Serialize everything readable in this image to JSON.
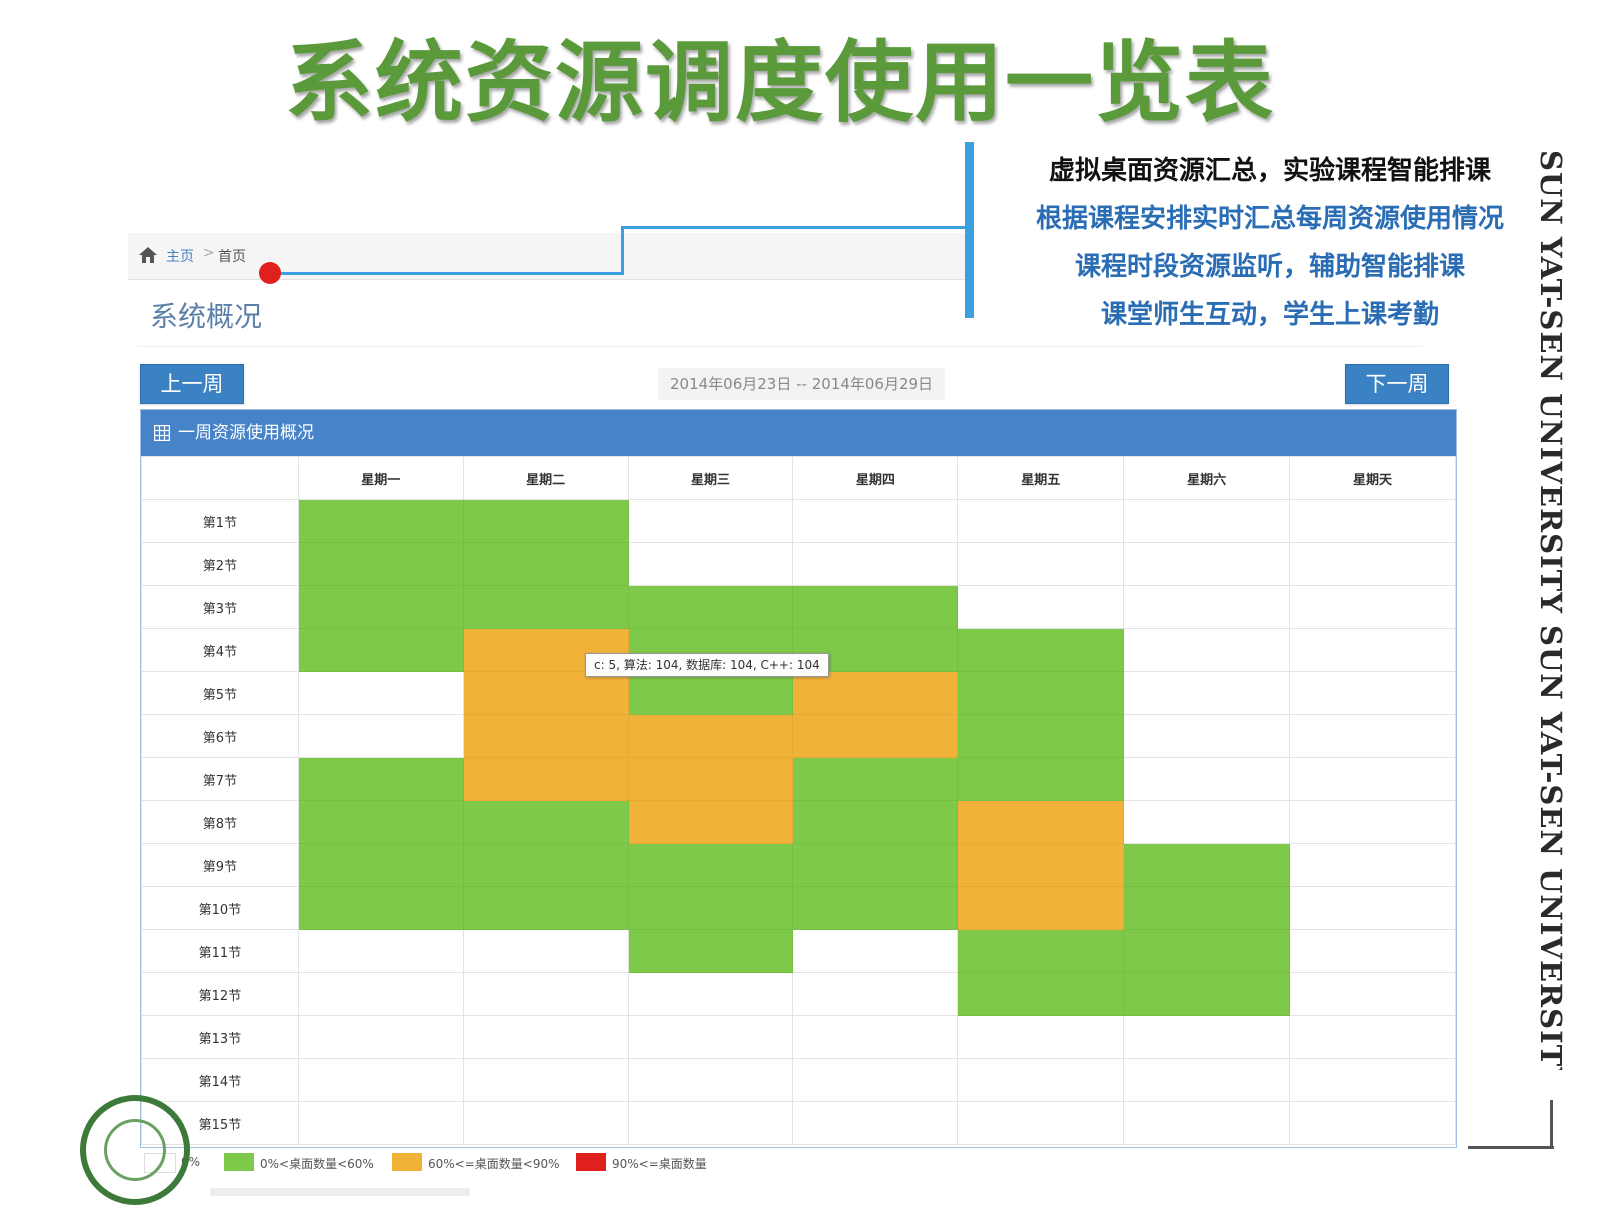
{
  "slide": {
    "title": "系统资源调度使用一览表",
    "callouts": [
      "虚拟桌面资源汇总，实验课程智能排课",
      "根据课程安排实时汇总每周资源使用情况",
      "课程时段资源监听，辅助智能排课",
      "课堂师生互动，学生上课考勤"
    ],
    "watermark": "SUN YAT-SEN UNIVERSITY SUN YAT-SEN UNIVERSITY"
  },
  "breadcrumb": {
    "home_label": "主页",
    "separator": ">",
    "current_label": "首页"
  },
  "page": {
    "subtitle": "系统概况"
  },
  "week_nav": {
    "prev_label": "上一周",
    "next_label": "下一周",
    "date_range": "2014年06月23日 -- 2014年06月29日"
  },
  "panel": {
    "title": "一周资源使用概况"
  },
  "table": {
    "days": [
      "星期一",
      "星期二",
      "星期三",
      "星期四",
      "星期五",
      "星期六",
      "星期天"
    ],
    "periods": [
      "第1节",
      "第2节",
      "第3节",
      "第4节",
      "第5节",
      "第6节",
      "第7节",
      "第8节",
      "第9节",
      "第10节",
      "第11节",
      "第12节",
      "第13节",
      "第14节",
      "第15节"
    ],
    "usage_levels": [
      [
        1,
        1,
        0,
        0,
        0,
        0,
        0
      ],
      [
        1,
        1,
        0,
        0,
        0,
        0,
        0
      ],
      [
        1,
        1,
        1,
        1,
        0,
        0,
        0
      ],
      [
        1,
        2,
        1,
        1,
        1,
        0,
        0
      ],
      [
        0,
        2,
        1,
        2,
        1,
        0,
        0
      ],
      [
        0,
        2,
        2,
        2,
        1,
        0,
        0
      ],
      [
        1,
        2,
        2,
        1,
        1,
        0,
        0
      ],
      [
        1,
        1,
        2,
        1,
        2,
        0,
        0
      ],
      [
        1,
        1,
        1,
        1,
        2,
        1,
        0
      ],
      [
        1,
        1,
        1,
        1,
        2,
        1,
        0
      ],
      [
        0,
        0,
        1,
        0,
        1,
        1,
        0
      ],
      [
        0,
        0,
        0,
        0,
        1,
        1,
        0
      ],
      [
        0,
        0,
        0,
        0,
        0,
        0,
        0
      ],
      [
        0,
        0,
        0,
        0,
        0,
        0,
        0
      ],
      [
        0,
        0,
        0,
        0,
        0,
        0,
        0
      ]
    ]
  },
  "tooltip": {
    "text": "c: 5, 算法: 104, 数据库: 104, C++: 104"
  },
  "legend": [
    {
      "label": "0%",
      "color": "#ffffff"
    },
    {
      "label": "0%<桌面数量<60%",
      "color": "#7ec94a"
    },
    {
      "label": "60%<=桌面数量<90%",
      "color": "#f1b23a"
    },
    {
      "label": "90%<=桌面数量",
      "color": "#e0201c"
    }
  ],
  "icons": {
    "home": "home-icon",
    "grid": "grid-table-icon"
  }
}
